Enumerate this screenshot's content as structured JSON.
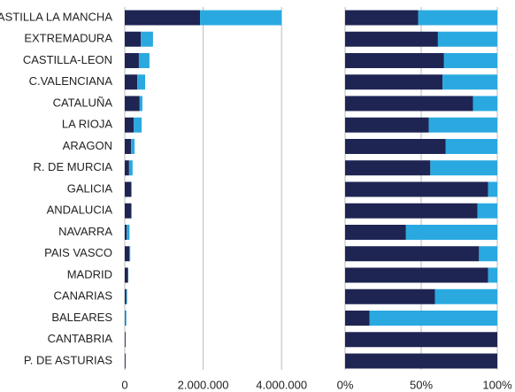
{
  "chart_data": [
    {
      "type": "stacked-bar-horizontal",
      "categories": [
        "CASTILLA LA MANCHA",
        "EXTREMADURA",
        "CASTILLA-LEON",
        "C.VALENCIANA",
        "CATALUÑA",
        "LA RIOJA",
        "ARAGON",
        "R. DE MURCIA",
        "GALICIA",
        "ANDALUCIA",
        "NAVARRA",
        "PAIS VASCO",
        "MADRID",
        "CANARIAS",
        "BALEARES",
        "CANTABRIA",
        "P. DE ASTURIAS"
      ],
      "series": [
        {
          "color": "#1e2553",
          "values": [
            1920000,
            410000,
            360000,
            320000,
            380000,
            230000,
            160000,
            110000,
            160000,
            160000,
            50000,
            120000,
            80000,
            40000,
            10000,
            20000,
            20000
          ]
        },
        {
          "color": "#2aa9e0",
          "values": [
            2080000,
            310000,
            270000,
            200000,
            70000,
            200000,
            90000,
            90000,
            20000,
            20000,
            70000,
            20000,
            10000,
            20000,
            30000,
            0,
            0
          ]
        }
      ],
      "xlim": [
        0,
        5000000
      ],
      "xticks": [
        0,
        {
          "value": 2000000,
          "label": "2.000.000"
        },
        {
          "value": 4000000,
          "label": "4.000.000"
        }
      ],
      "grid": true
    },
    {
      "type": "stacked-bar-horizontal",
      "series": [
        {
          "color": "#1e2553",
          "values": [
            48,
            61,
            65,
            64,
            84,
            55,
            66,
            56,
            94,
            87,
            40,
            88,
            94,
            59,
            16,
            100,
            100
          ]
        },
        {
          "color": "#2aa9e0",
          "values": [
            52,
            39,
            35,
            36,
            16,
            45,
            34,
            44,
            6,
            13,
            60,
            12,
            6,
            41,
            84,
            0,
            0
          ]
        }
      ],
      "xlim": [
        0,
        100
      ],
      "xticks": [
        {
          "value": 0,
          "label": "0%"
        },
        {
          "value": 50,
          "label": "50%"
        },
        {
          "value": 100,
          "label": "100%"
        }
      ],
      "grid": true
    }
  ]
}
